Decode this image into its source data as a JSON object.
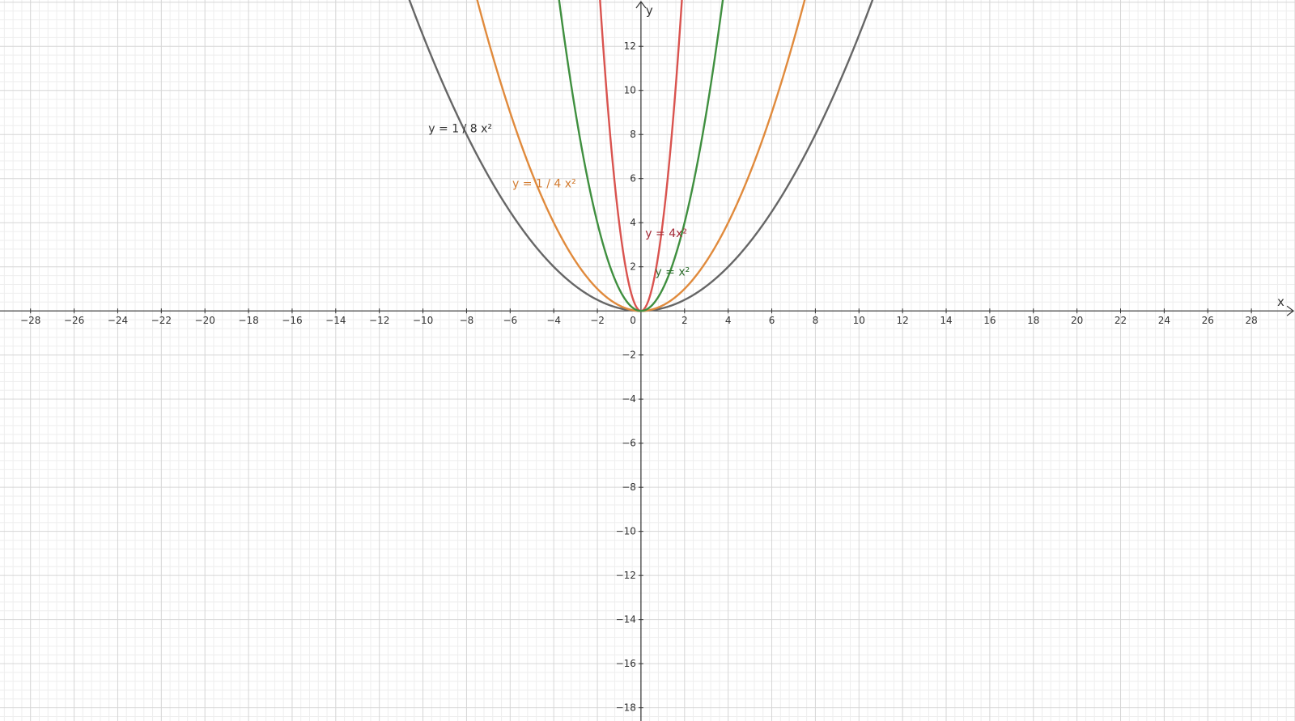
{
  "chart_data": {
    "type": "line",
    "xlabel": "x",
    "ylabel": "y",
    "xlim": [
      -29.4,
      30
    ],
    "ylim": [
      -18.6,
      14.1
    ],
    "x_ticks": [
      -28,
      -26,
      -24,
      -22,
      -20,
      -18,
      -16,
      -14,
      -12,
      -10,
      -8,
      -6,
      -4,
      -2,
      2,
      4,
      6,
      8,
      10,
      12,
      14,
      16,
      18,
      20,
      22,
      24,
      26,
      28
    ],
    "y_ticks": [
      -18,
      -16,
      -14,
      -12,
      -10,
      -8,
      -6,
      -4,
      -2,
      2,
      4,
      6,
      8,
      10,
      12
    ],
    "origin_label": "0",
    "grid": true,
    "minor_grid_per_major": 5,
    "colors": {
      "major_grid": "#d6d6d6",
      "minor_grid": "#eeeeee",
      "axis": "#333333"
    },
    "series": [
      {
        "name": "y = 1 / 8 x²",
        "coefficient": 0.125,
        "color": "#666666",
        "label_color": "#333333",
        "label_anchor": [
          -9.75,
          8.1
        ]
      },
      {
        "name": "y = 1 / 4 x²",
        "coefficient": 0.25,
        "color": "#e08a3c",
        "label_color": "#d27a2e",
        "label_anchor": [
          -5.9,
          5.6
        ]
      },
      {
        "name": "y = 4x²",
        "coefficient": 4,
        "color": "#d9534f",
        "label_color": "#a32a36",
        "label_anchor": [
          0.2,
          3.35
        ]
      },
      {
        "name": "y = x²",
        "coefficient": 1,
        "color": "#3f8f3f",
        "label_color": "#2b6b2b",
        "label_anchor": [
          0.65,
          1.6
        ]
      }
    ]
  }
}
